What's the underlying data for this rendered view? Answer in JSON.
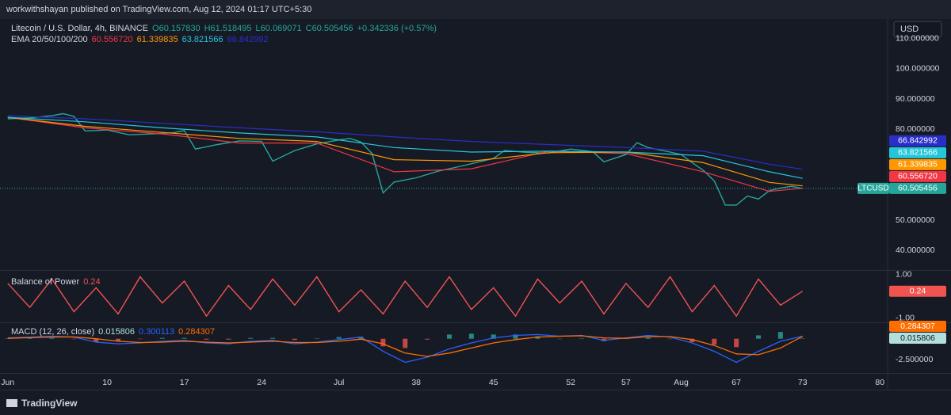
{
  "header": {
    "publisher": "workwithshayan published on TradingView.com, Aug 12, 2024 01:17 UTC+5:30"
  },
  "currency": "USD",
  "footer": {
    "brand": "TradingView"
  },
  "chart_data": [
    {
      "type": "line",
      "title": "Litecoin / U.S. Dollar, 4h, BINANCE",
      "ohlc": [
        "O60.157830",
        "H61.518495",
        "L60.069071",
        "C60.505456",
        "+0.342336 (+0.57%)"
      ],
      "ema_title": "EMA 20/50/100/200",
      "xlim": [
        0.3,
        80.7
      ],
      "xticks": [
        {
          "value": 1,
          "label": "Jun"
        },
        10,
        17,
        24,
        {
          "value": 31,
          "label": "Jul"
        },
        38,
        45,
        52,
        57,
        {
          "value": 62,
          "label": "Aug"
        },
        67,
        73,
        80
      ],
      "ylim": [
        33.8,
        115.4
      ],
      "yticks": [
        {
          "value": 40,
          "label": "40.000000"
        },
        {
          "value": 50,
          "label": "50.000000"
        },
        {
          "value": 80,
          "label": "80.000000"
        },
        {
          "value": 90,
          "label": "90.000000"
        },
        {
          "value": 100,
          "label": "100.000000"
        },
        {
          "value": 110,
          "label": "110.000000"
        }
      ],
      "series": [
        {
          "name": "LTCUSD",
          "color": "#26a69a",
          "last_label": "60.505456",
          "x": [
            1,
            3,
            5,
            6,
            7,
            8,
            10,
            12,
            14,
            16,
            17,
            18,
            20,
            22,
            24,
            25,
            27,
            29,
            31,
            32,
            33,
            34,
            35,
            36,
            38,
            40,
            42,
            45,
            46,
            48,
            50,
            52,
            54,
            55,
            57,
            58,
            59,
            61,
            62,
            63,
            64,
            65,
            66,
            67,
            68,
            69,
            70,
            71,
            72,
            73
          ],
          "values": [
            83.5,
            83.8,
            84.5,
            85.2,
            84.3,
            79.5,
            79.8,
            78.2,
            78.5,
            78.9,
            79.6,
            73.5,
            75,
            76.2,
            76,
            69.5,
            73,
            75.2,
            76.5,
            77,
            75.8,
            72,
            59,
            62.6,
            64,
            66.2,
            67.8,
            70.4,
            73,
            72.4,
            72.2,
            73.5,
            72.6,
            69.3,
            71.7,
            75.6,
            74,
            72.5,
            71.7,
            69,
            66.5,
            63,
            55,
            55,
            58,
            57,
            59.8,
            60.6,
            61.2,
            60.505456
          ]
        },
        {
          "color": "#f23645",
          "last_label": "60.556720",
          "x": [
            1,
            8,
            15,
            22,
            29,
            36,
            43,
            50,
            57,
            64,
            70,
            73
          ],
          "values": [
            84,
            80.5,
            78.5,
            75.5,
            75.5,
            66,
            67,
            72.8,
            72,
            66,
            59.5,
            60.55672
          ]
        },
        {
          "color": "#ff9800",
          "last_label": "61.339835",
          "x": [
            1,
            8,
            15,
            22,
            29,
            36,
            43,
            50,
            57,
            64,
            70,
            73
          ],
          "values": [
            84,
            81,
            79,
            77,
            76,
            70,
            69.5,
            72.3,
            72.5,
            69,
            62.5,
            61.339835
          ]
        },
        {
          "color": "#26c6da",
          "last_label": "63.821566",
          "x": [
            1,
            8,
            15,
            22,
            29,
            36,
            43,
            50,
            57,
            64,
            70,
            73
          ],
          "values": [
            84,
            82.5,
            80.5,
            78.8,
            77.5,
            74,
            72.5,
            72.8,
            72.5,
            71.3,
            66,
            63.821566
          ]
        },
        {
          "color": "#2a2ec8",
          "last_label": "66.842992",
          "x": [
            1,
            8,
            15,
            22,
            29,
            36,
            43,
            50,
            57,
            64,
            70,
            73
          ],
          "values": [
            84.5,
            83.5,
            82,
            80.5,
            79.2,
            77.5,
            76,
            75,
            74,
            72.8,
            68.5,
            66.842992
          ]
        }
      ]
    },
    {
      "type": "line",
      "title": "Balance of Power",
      "ylim": [
        -1.15,
        1.1
      ],
      "yticks": [
        {
          "value": 1,
          "label": "1.00"
        },
        {
          "value": -1,
          "label": "-1.00"
        }
      ],
      "series": [
        {
          "color": "#f05350",
          "last_label": "0.24",
          "x": [
            1,
            3,
            5,
            7,
            9,
            11,
            13,
            15,
            17,
            19,
            21,
            23,
            25,
            27,
            29,
            31,
            33,
            35,
            37,
            39,
            41,
            43,
            45,
            47,
            49,
            51,
            53,
            55,
            57,
            59,
            61,
            63,
            65,
            67,
            69,
            71,
            73
          ],
          "values": [
            0.6,
            -0.5,
            0.8,
            -0.7,
            0.4,
            -0.8,
            0.9,
            -0.3,
            0.7,
            -0.9,
            0.5,
            -0.6,
            0.8,
            -0.4,
            0.9,
            -0.7,
            0.3,
            -0.8,
            0.7,
            -0.5,
            0.9,
            -0.6,
            0.4,
            -0.9,
            0.8,
            -0.3,
            0.7,
            -0.8,
            0.6,
            -0.5,
            0.9,
            -0.7,
            0.5,
            -0.9,
            0.8,
            -0.4,
            0.24
          ]
        }
      ]
    },
    {
      "type": "macd",
      "title": "MACD (12, 26, close)",
      "ylim": [
        -3.98,
        1.76
      ],
      "yticks": [
        {
          "value": -2.5,
          "label": "-2.500000"
        }
      ],
      "x": [
        1,
        3,
        5,
        7,
        9,
        11,
        13,
        15,
        17,
        19,
        21,
        23,
        25,
        27,
        29,
        31,
        33,
        35,
        37,
        39,
        41,
        43,
        45,
        47,
        49,
        51,
        53,
        55,
        57,
        59,
        61,
        63,
        65,
        67,
        69,
        71,
        73
      ],
      "histogram": {
        "up_color": "#26a69a",
        "down_color": "#ef5350",
        "label_color": "#b2dfdb",
        "last_label": "0.015806",
        "values": [
          0.05,
          0.08,
          0.1,
          -0.02,
          -0.4,
          -0.3,
          -0.05,
          0.1,
          0.1,
          -0.1,
          -0.1,
          0.1,
          0.1,
          -0.15,
          0.05,
          0.2,
          0.25,
          -0.9,
          -1.1,
          -0.1,
          0.5,
          0.6,
          0.5,
          0.5,
          0.3,
          0,
          0.05,
          -0.3,
          0.05,
          0.15,
          -0.05,
          -0.4,
          -0.7,
          -1,
          0.4,
          0.8,
          0.015806
        ]
      },
      "series": [
        {
          "color": "#2962ff",
          "last_label": "0.300113",
          "values": [
            0.1,
            0.2,
            0.3,
            0.2,
            -0.4,
            -0.6,
            -0.5,
            -0.3,
            -0.2,
            -0.5,
            -0.6,
            -0.3,
            -0.2,
            -0.6,
            -0.4,
            -0.1,
            0.2,
            -1.5,
            -2.8,
            -2.2,
            -1.2,
            -0.5,
            0.1,
            0.4,
            0.5,
            0.3,
            0.4,
            -0.2,
            0.1,
            0.4,
            0.2,
            -0.5,
            -1.5,
            -2.8,
            -1.5,
            -0.3,
            0.300113
          ]
        },
        {
          "color": "#ff6d00",
          "last_label": "0.284307",
          "values": [
            0.05,
            0.12,
            0.2,
            0.22,
            0.0,
            -0.3,
            -0.45,
            -0.4,
            -0.3,
            -0.4,
            -0.5,
            -0.4,
            -0.3,
            -0.45,
            -0.45,
            -0.3,
            -0.05,
            -0.6,
            -1.7,
            -2.1,
            -1.7,
            -1.1,
            -0.5,
            -0.1,
            0.2,
            0.3,
            0.35,
            0.1,
            0.05,
            0.25,
            0.25,
            -0.1,
            -0.8,
            -1.8,
            -1.9,
            -1.1,
            0.284307
          ]
        }
      ]
    }
  ]
}
